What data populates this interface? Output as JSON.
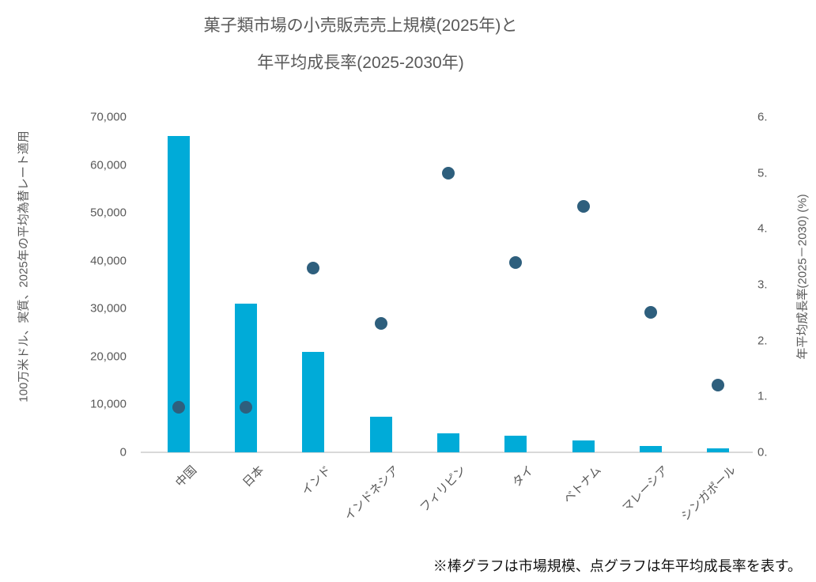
{
  "title": {
    "line1": "菓子類市場の小売販売売上規模(2025年)と",
    "line2": "年平均成長率(2025-2030年)"
  },
  "footnote": "※棒グラフは市場規模、点グラフは年平均成長率を表す。",
  "colors": {
    "bar": "#00abd8",
    "dot": "#2e5f7d",
    "text": "#595959",
    "axis_line": "#d9d9d9"
  },
  "chart_data": {
    "type": "bar",
    "subtype": "combo-bar-scatter",
    "title": "菓子類市場の小売販売売上規模(2025年)と年平均成長率(2025-2030年)",
    "categories": [
      "中国",
      "日本",
      "インド",
      "インドネシア",
      "フィリピン",
      "タイ",
      "ベトナム",
      "マレーシア",
      "シンガポール"
    ],
    "series": [
      {
        "name": "市場規模(棒グラフ)",
        "type": "bar",
        "axis": "left",
        "color": "#00abd8",
        "values": [
          66000,
          31000,
          21000,
          7500,
          4000,
          3500,
          2400,
          1400,
          800
        ]
      },
      {
        "name": "年平均成長率(点グラフ)",
        "type": "scatter",
        "axis": "right",
        "color": "#2e5f7d",
        "values": [
          0.8,
          0.8,
          3.3,
          2.3,
          5.0,
          3.4,
          4.4,
          2.5,
          1.2
        ]
      }
    ],
    "left_axis": {
      "title": "100万米ドル、実質、2025年の平均為替レート適用",
      "min": 0,
      "max": 70000,
      "tick_step": 10000,
      "tick_labels": [
        "0",
        "10,000",
        "20,000",
        "30,000",
        "40,000",
        "50,000",
        "60,000",
        "70,000"
      ]
    },
    "right_axis": {
      "title": "年平均成長率(2025－2030) (%)",
      "min": 0,
      "max": 6,
      "tick_step": 1,
      "tick_labels": [
        "0.",
        "1.",
        "2.",
        "3.",
        "4.",
        "5.",
        "6."
      ]
    },
    "legend": "none",
    "grid": "off"
  }
}
